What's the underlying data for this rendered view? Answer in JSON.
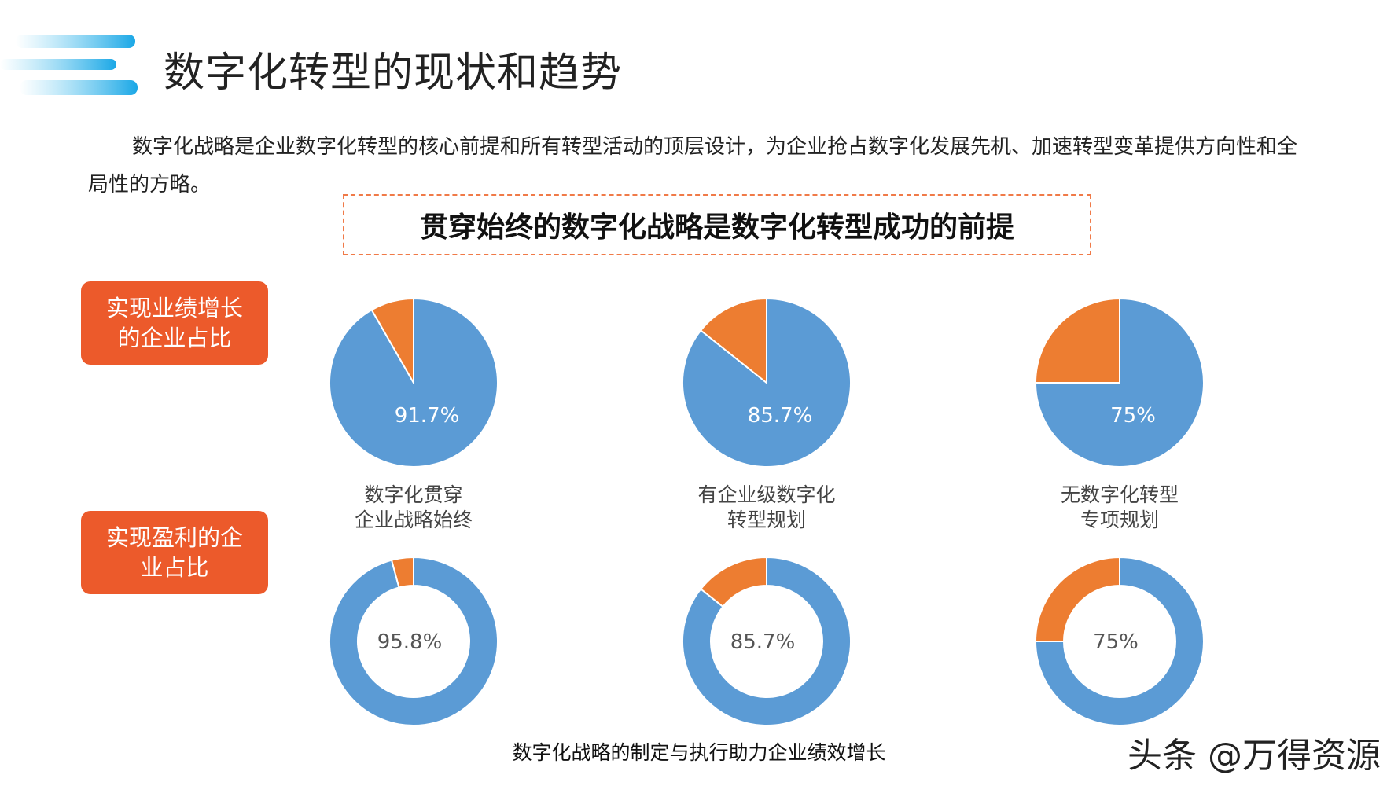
{
  "page_title": "数字化转型的现状和趋势",
  "intro_text": "数字化战略是企业数字化转型的核心前提和所有转型活动的顶层设计，为企业抢占数字化发展先机、加速转型变革提供方向性和全局性的方略。",
  "banner_text": "贯穿始终的数字化战略是数字化转型成功的前提",
  "row_labels": [
    "实现业绩增长的企业占比",
    "实现盈利的企业占比"
  ],
  "column_labels": [
    [
      "数字化贯穿",
      "企业战略始终"
    ],
    [
      "有企业级数字化",
      "转型规划"
    ],
    [
      "无数字化转型",
      "专项规划"
    ]
  ],
  "footer_caption": "数字化战略的制定与执行助力企业绩效增长",
  "watermark": "头条 @万得资源",
  "colors": {
    "blue": "#5b9bd5",
    "orange": "#ed7d31",
    "badge": "#ec5a2b",
    "banner_border": "#f07a48"
  },
  "chart_data": [
    {
      "type": "pie",
      "group": "实现业绩增长的企业占比",
      "category": "数字化贯穿企业战略始终",
      "values": [
        91.7,
        8.3
      ],
      "label": "91.7%"
    },
    {
      "type": "pie",
      "group": "实现业绩增长的企业占比",
      "category": "有企业级数字化转型规划",
      "values": [
        85.7,
        14.3
      ],
      "label": "85.7%"
    },
    {
      "type": "pie",
      "group": "实现业绩增长的企业占比",
      "category": "无数字化转型专项规划",
      "values": [
        75,
        25
      ],
      "label": "75%"
    },
    {
      "type": "donut",
      "group": "实现盈利的企业占比",
      "category": "数字化贯穿企业战略始终",
      "values": [
        95.8,
        4.2
      ],
      "label": "95.8%"
    },
    {
      "type": "donut",
      "group": "实现盈利的企业占比",
      "category": "有企业级数字化转型规划",
      "values": [
        85.7,
        14.3
      ],
      "label": "85.7%"
    },
    {
      "type": "donut",
      "group": "实现盈利的企业占比",
      "category": "无数字化转型专项规划",
      "values": [
        75,
        25
      ],
      "label": "75%"
    }
  ]
}
